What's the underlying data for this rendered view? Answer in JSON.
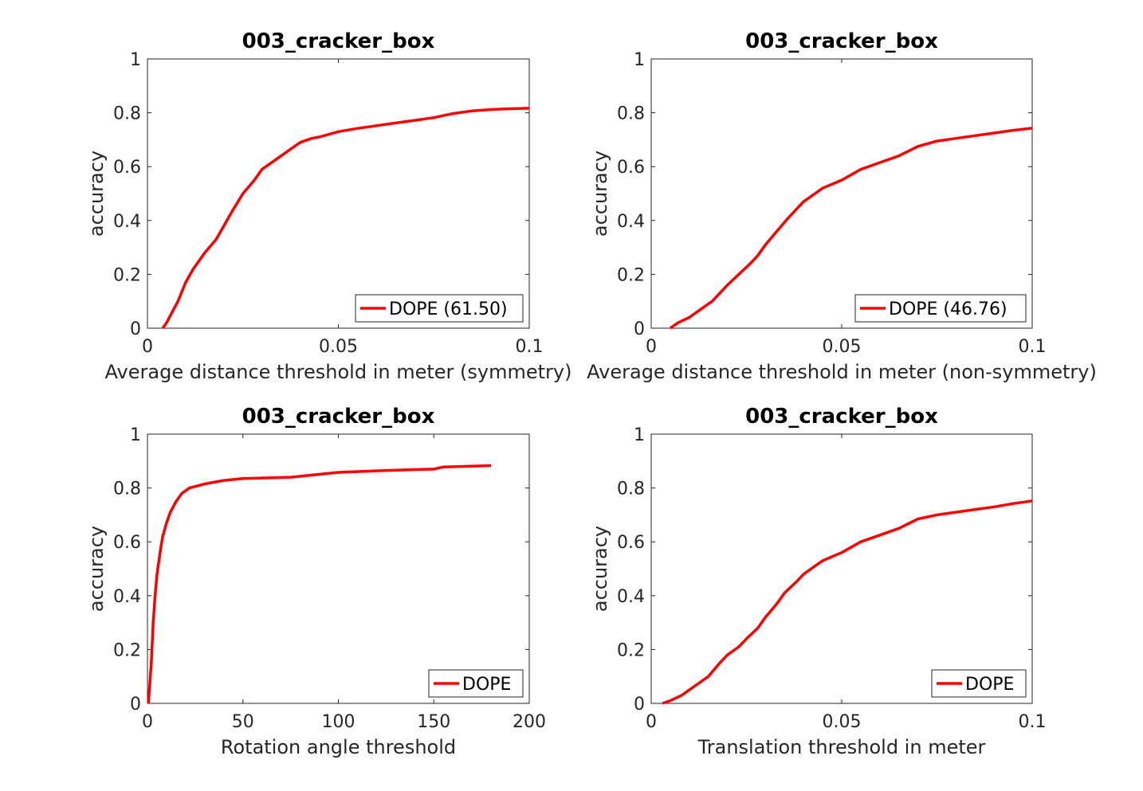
{
  "chart_data": [
    {
      "type": "line",
      "title": "003_cracker_box",
      "xlabel": "Average distance threshold in meter (symmetry)",
      "ylabel": "accuracy",
      "xlim": [
        0,
        0.1
      ],
      "ylim": [
        0,
        1
      ],
      "xticks": [
        "0",
        "0.05",
        "0.1"
      ],
      "yticks": [
        "0",
        "0.2",
        "0.4",
        "0.6",
        "0.8",
        "1"
      ],
      "legend_position": "bottom-right",
      "series": [
        {
          "name": "DOPE (61.50)",
          "color": "#ff0000",
          "x": [
            0.004,
            0.005,
            0.008,
            0.01,
            0.012,
            0.015,
            0.018,
            0.02,
            0.022,
            0.025,
            0.028,
            0.03,
            0.033,
            0.036,
            0.038,
            0.04,
            0.043,
            0.045,
            0.05,
            0.055,
            0.06,
            0.065,
            0.07,
            0.075,
            0.08,
            0.085,
            0.09,
            0.095,
            0.1
          ],
          "y": [
            0.0,
            0.02,
            0.1,
            0.17,
            0.22,
            0.28,
            0.33,
            0.38,
            0.43,
            0.5,
            0.55,
            0.59,
            0.62,
            0.65,
            0.67,
            0.69,
            0.705,
            0.71,
            0.73,
            0.742,
            0.752,
            0.762,
            0.772,
            0.782,
            0.797,
            0.807,
            0.812,
            0.815,
            0.817
          ]
        }
      ]
    },
    {
      "type": "line",
      "title": "003_cracker_box",
      "xlabel": "Average distance threshold in meter (non-symmetry)",
      "ylabel": "accuracy",
      "xlim": [
        0,
        0.1
      ],
      "ylim": [
        0,
        1
      ],
      "xticks": [
        "0",
        "0.05",
        "0.1"
      ],
      "yticks": [
        "0",
        "0.2",
        "0.4",
        "0.6",
        "0.8",
        "1"
      ],
      "legend_position": "bottom-right",
      "series": [
        {
          "name": "DOPE (46.76)",
          "color": "#ff0000",
          "x": [
            0.005,
            0.007,
            0.01,
            0.013,
            0.016,
            0.018,
            0.02,
            0.023,
            0.026,
            0.028,
            0.03,
            0.033,
            0.036,
            0.038,
            0.04,
            0.043,
            0.045,
            0.05,
            0.055,
            0.06,
            0.065,
            0.07,
            0.075,
            0.08,
            0.085,
            0.09,
            0.095,
            0.1
          ],
          "y": [
            0.0,
            0.02,
            0.04,
            0.07,
            0.1,
            0.13,
            0.16,
            0.2,
            0.24,
            0.27,
            0.31,
            0.36,
            0.41,
            0.44,
            0.47,
            0.5,
            0.52,
            0.55,
            0.59,
            0.615,
            0.64,
            0.675,
            0.695,
            0.705,
            0.715,
            0.725,
            0.735,
            0.743
          ]
        }
      ]
    },
    {
      "type": "line",
      "title": "003_cracker_box",
      "xlabel": "Rotation angle threshold",
      "ylabel": "accuracy",
      "xlim": [
        0,
        200
      ],
      "ylim": [
        0,
        1
      ],
      "xticks": [
        "0",
        "50",
        "100",
        "150",
        "200"
      ],
      "yticks": [
        "0",
        "0.2",
        "0.4",
        "0.6",
        "0.8",
        "1"
      ],
      "legend_position": "bottom-right",
      "series": [
        {
          "name": "DOPE",
          "color": "#ff0000",
          "x": [
            0.5,
            2,
            3,
            4,
            5,
            6,
            7,
            8,
            10,
            12,
            15,
            18,
            22,
            30,
            40,
            50,
            75,
            100,
            125,
            150,
            155,
            180
          ],
          "y": [
            0.0,
            0.15,
            0.3,
            0.4,
            0.48,
            0.53,
            0.58,
            0.62,
            0.67,
            0.71,
            0.75,
            0.78,
            0.8,
            0.815,
            0.828,
            0.835,
            0.84,
            0.858,
            0.865,
            0.87,
            0.878,
            0.883
          ]
        }
      ]
    },
    {
      "type": "line",
      "title": "003_cracker_box",
      "xlabel": "Translation threshold in meter",
      "ylabel": "accuracy",
      "xlim": [
        0,
        0.1
      ],
      "ylim": [
        0,
        1
      ],
      "xticks": [
        "0",
        "0.05",
        "0.1"
      ],
      "yticks": [
        "0",
        "0.2",
        "0.4",
        "0.6",
        "0.8",
        "1"
      ],
      "legend_position": "bottom-right",
      "series": [
        {
          "name": "DOPE",
          "color": "#ff0000",
          "x": [
            0.003,
            0.005,
            0.008,
            0.01,
            0.013,
            0.015,
            0.018,
            0.02,
            0.023,
            0.025,
            0.028,
            0.03,
            0.033,
            0.035,
            0.038,
            0.04,
            0.043,
            0.045,
            0.05,
            0.055,
            0.06,
            0.065,
            0.07,
            0.075,
            0.08,
            0.085,
            0.09,
            0.095,
            0.1
          ],
          "y": [
            0.0,
            0.01,
            0.03,
            0.05,
            0.08,
            0.1,
            0.15,
            0.18,
            0.21,
            0.24,
            0.28,
            0.32,
            0.37,
            0.41,
            0.45,
            0.48,
            0.51,
            0.53,
            0.56,
            0.6,
            0.625,
            0.65,
            0.685,
            0.7,
            0.71,
            0.72,
            0.73,
            0.742,
            0.752
          ]
        }
      ]
    }
  ]
}
